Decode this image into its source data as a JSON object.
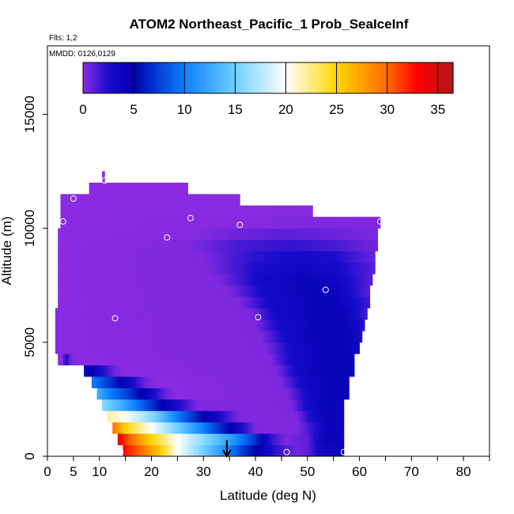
{
  "chart_data": {
    "type": "heatmap",
    "title": "ATOM2 Northeast_Pacific_1 Prob_SeaIceInf",
    "flights_label": "Flts: 1,2",
    "dates_label": "MMDD: 0126,0129",
    "xlabel": "Latitude (deg N)",
    "ylabel": "Altitude (m)",
    "xlim": [
      0,
      85
    ],
    "ylim": [
      0,
      18000
    ],
    "x_ticks": [
      0,
      5,
      10,
      20,
      30,
      40,
      50,
      60,
      70,
      80
    ],
    "x_tick_labels": [
      "0",
      "5",
      "10",
      "20",
      "30",
      "40",
      "50",
      "60",
      "70",
      "80"
    ],
    "y_ticks": [
      0,
      5000,
      10000,
      15000
    ],
    "y_tick_labels": [
      "0",
      "5000",
      "10000",
      "15000"
    ],
    "colorbar": {
      "min": 0,
      "max": 36.5,
      "ticks": [
        0,
        5,
        10,
        15,
        20,
        25,
        30,
        35
      ],
      "tick_labels": [
        "0",
        "5",
        "10",
        "15",
        "20",
        "25",
        "30",
        "35"
      ],
      "stops": [
        {
          "v": 0,
          "c": "#8a2be2"
        },
        {
          "v": 2.5,
          "c": "#1a0dcc"
        },
        {
          "v": 5,
          "c": "#0000b0"
        },
        {
          "v": 10,
          "c": "#0a80ff"
        },
        {
          "v": 15,
          "c": "#6fd0ff"
        },
        {
          "v": 20,
          "c": "#ffffff"
        },
        {
          "v": 25,
          "c": "#ffd700"
        },
        {
          "v": 30,
          "c": "#ff6a00"
        },
        {
          "v": 33,
          "c": "#ff0000"
        },
        {
          "v": 36.5,
          "c": "#b01818"
        }
      ]
    },
    "field_rows": [
      {
        "y0": 0,
        "y1": 500,
        "x0": 14.5,
        "x1": 57,
        "stops": [
          [
            14.5,
            33
          ],
          [
            18,
            30
          ],
          [
            22,
            25
          ],
          [
            25,
            20
          ],
          [
            30,
            15
          ],
          [
            35,
            10
          ],
          [
            40,
            5
          ],
          [
            44,
            2
          ],
          [
            48,
            0.5
          ],
          [
            50,
            1
          ],
          [
            53,
            3.5
          ],
          [
            57,
            4
          ]
        ]
      },
      {
        "y0": 500,
        "y1": 1000,
        "x0": 13.5,
        "x1": 57,
        "stops": [
          [
            13.5,
            34
          ],
          [
            16,
            30
          ],
          [
            20,
            25
          ],
          [
            25,
            20
          ],
          [
            30,
            16
          ],
          [
            35,
            12
          ],
          [
            40,
            7
          ],
          [
            43,
            2
          ],
          [
            46,
            0.3
          ],
          [
            50,
            1
          ],
          [
            53,
            4
          ],
          [
            57,
            4
          ]
        ]
      },
      {
        "y0": 1000,
        "y1": 1500,
        "x0": 12.5,
        "x1": 57,
        "stops": [
          [
            12.5,
            30
          ],
          [
            15,
            25
          ],
          [
            18,
            22
          ],
          [
            22,
            18
          ],
          [
            28,
            12
          ],
          [
            33,
            7
          ],
          [
            37,
            3
          ],
          [
            40,
            0.3
          ],
          [
            48,
            0.2
          ],
          [
            51,
            2
          ],
          [
            54,
            4
          ],
          [
            57,
            4
          ]
        ]
      },
      {
        "y0": 1500,
        "y1": 2000,
        "x0": 11.5,
        "x1": 57,
        "stops": [
          [
            11.5,
            22
          ],
          [
            15,
            20
          ],
          [
            20,
            16
          ],
          [
            25,
            10
          ],
          [
            30,
            5
          ],
          [
            34,
            2
          ],
          [
            37,
            0.2
          ],
          [
            48,
            0.3
          ],
          [
            51,
            3
          ],
          [
            54,
            4
          ],
          [
            57,
            4
          ]
        ]
      },
      {
        "y0": 2000,
        "y1": 2500,
        "x0": 10.5,
        "x1": 57,
        "stops": [
          [
            10.5,
            16
          ],
          [
            14,
            13
          ],
          [
            18,
            9
          ],
          [
            22,
            5
          ],
          [
            26,
            2
          ],
          [
            29,
            0.2
          ],
          [
            47,
            0.3
          ],
          [
            50,
            3
          ],
          [
            54,
            4
          ],
          [
            57,
            4
          ]
        ]
      },
      {
        "y0": 2500,
        "y1": 3000,
        "x0": 9.5,
        "x1": 58,
        "stops": [
          [
            9.5,
            13
          ],
          [
            12,
            10
          ],
          [
            16,
            7
          ],
          [
            20,
            3
          ],
          [
            23,
            0.5
          ],
          [
            25,
            0
          ],
          [
            46,
            0.3
          ],
          [
            50,
            3
          ],
          [
            54,
            4
          ],
          [
            58,
            4
          ]
        ]
      },
      {
        "y0": 3000,
        "y1": 3500,
        "x0": 8.5,
        "x1": 58,
        "stops": [
          [
            8.5,
            10
          ],
          [
            12,
            7
          ],
          [
            16,
            3
          ],
          [
            19,
            0.5
          ],
          [
            21,
            0
          ],
          [
            45,
            0.3
          ],
          [
            49,
            3
          ],
          [
            53,
            4
          ],
          [
            58,
            4
          ]
        ]
      },
      {
        "y0": 3500,
        "y1": 4000,
        "x0": 7,
        "x1": 59,
        "stops": [
          [
            7,
            6
          ],
          [
            10,
            3
          ],
          [
            13,
            0.5
          ],
          [
            15,
            0
          ],
          [
            44,
            0.3
          ],
          [
            48,
            3
          ],
          [
            52,
            4
          ],
          [
            59,
            4
          ]
        ]
      },
      {
        "y0": 4000,
        "y1": 4500,
        "x0": 2,
        "x1": 59,
        "stops": [
          [
            2,
            0
          ],
          [
            3,
            0
          ],
          [
            3.5,
            3
          ],
          [
            4.5,
            0.3
          ],
          [
            6,
            0
          ],
          [
            43,
            0.3
          ],
          [
            47,
            3
          ],
          [
            52,
            4
          ],
          [
            59,
            4
          ]
        ]
      },
      {
        "y0": 4500,
        "y1": 5000,
        "x0": 1.5,
        "x1": 60,
        "stops": [
          [
            1.5,
            0
          ],
          [
            42,
            0.3
          ],
          [
            47,
            3
          ],
          [
            52,
            4
          ],
          [
            58,
            4
          ],
          [
            60,
            3
          ]
        ]
      },
      {
        "y0": 5000,
        "y1": 5500,
        "x0": 1.5,
        "x1": 60.5,
        "stops": [
          [
            1.5,
            0
          ],
          [
            41,
            0.3
          ],
          [
            46,
            3
          ],
          [
            51,
            4
          ],
          [
            58,
            4
          ],
          [
            60.5,
            2.5
          ]
        ]
      },
      {
        "y0": 5500,
        "y1": 6000,
        "x0": 1.5,
        "x1": 61,
        "stops": [
          [
            1.5,
            0
          ],
          [
            40,
            0.3
          ],
          [
            45,
            3
          ],
          [
            51,
            4
          ],
          [
            58,
            4
          ],
          [
            61,
            2
          ]
        ]
      },
      {
        "y0": 6000,
        "y1": 6500,
        "x0": 1.5,
        "x1": 61.5,
        "stops": [
          [
            1.5,
            0
          ],
          [
            39,
            0.3
          ],
          [
            44,
            3
          ],
          [
            51,
            4
          ],
          [
            57,
            4
          ],
          [
            61.5,
            1.5
          ]
        ]
      },
      {
        "y0": 6500,
        "y1": 7000,
        "x0": 2,
        "x1": 62,
        "stops": [
          [
            2,
            0
          ],
          [
            37,
            0.3
          ],
          [
            43,
            3
          ],
          [
            51,
            4
          ],
          [
            56,
            4
          ],
          [
            62,
            1.5
          ]
        ]
      },
      {
        "y0": 7000,
        "y1": 7500,
        "x0": 2,
        "x1": 62,
        "stops": [
          [
            2,
            0
          ],
          [
            35,
            0.3
          ],
          [
            42,
            3
          ],
          [
            50,
            4
          ],
          [
            55,
            4
          ],
          [
            62,
            1
          ]
        ]
      },
      {
        "y0": 7500,
        "y1": 8000,
        "x0": 2,
        "x1": 62.5,
        "stops": [
          [
            2,
            0
          ],
          [
            33,
            0.3
          ],
          [
            41,
            3
          ],
          [
            50,
            4
          ],
          [
            55,
            3.5
          ],
          [
            62.5,
            1
          ]
        ]
      },
      {
        "y0": 8000,
        "y1": 8500,
        "x0": 2,
        "x1": 63,
        "stops": [
          [
            2,
            0
          ],
          [
            31,
            0.3
          ],
          [
            40,
            2.5
          ],
          [
            49,
            3.5
          ],
          [
            55,
            3
          ],
          [
            63,
            1
          ]
        ]
      },
      {
        "y0": 8500,
        "y1": 9000,
        "x0": 2,
        "x1": 63,
        "stops": [
          [
            2,
            0
          ],
          [
            30,
            0.3
          ],
          [
            39,
            2
          ],
          [
            48,
            3
          ],
          [
            55,
            2.5
          ],
          [
            63,
            0.7
          ]
        ]
      },
      {
        "y0": 9000,
        "y1": 9500,
        "x0": 2,
        "x1": 63.5,
        "stops": [
          [
            2,
            0
          ],
          [
            27,
            0.2
          ],
          [
            37,
            1.5
          ],
          [
            47,
            2
          ],
          [
            55,
            1.5
          ],
          [
            63.5,
            0.5
          ]
        ]
      },
      {
        "y0": 9500,
        "y1": 10000,
        "x0": 2,
        "x1": 63.5,
        "stops": [
          [
            2,
            0
          ],
          [
            28,
            0.1
          ],
          [
            38,
            0.7
          ],
          [
            46,
            1
          ],
          [
            55,
            0.7
          ],
          [
            63.5,
            0.3
          ]
        ]
      },
      {
        "y0": 10000,
        "y1": 10500,
        "x0": 2.5,
        "x1": 64,
        "stops": [
          [
            2.5,
            0
          ],
          [
            40,
            0.1
          ],
          [
            50,
            0.3
          ],
          [
            64,
            0.2
          ]
        ]
      },
      {
        "y0": 10500,
        "y1": 11000,
        "x0": 2.5,
        "x1": 51,
        "stops": [
          [
            2.5,
            0
          ],
          [
            51,
            0.05
          ]
        ]
      },
      {
        "y0": 11000,
        "y1": 11500,
        "x0": 2.5,
        "x1": 37,
        "stops": [
          [
            2.5,
            0
          ],
          [
            37,
            0
          ]
        ]
      },
      {
        "y0": 11500,
        "y1": 12000,
        "x0": 8,
        "x1": 27,
        "stops": [
          [
            8,
            0
          ],
          [
            27,
            0
          ]
        ]
      },
      {
        "y0": 12000,
        "y1": 12500,
        "x0": 10.5,
        "x1": 11,
        "stops": [
          [
            10.5,
            0
          ],
          [
            11,
            0
          ]
        ]
      }
    ],
    "points": [
      {
        "x": 0.8,
        "y": 4750
      },
      {
        "x": 3,
        "y": 10300
      },
      {
        "x": 5,
        "y": 11300
      },
      {
        "x": 11,
        "y": 12100
      },
      {
        "x": 13,
        "y": 6050
      },
      {
        "x": 14,
        "y": 180
      },
      {
        "x": 23,
        "y": 9600
      },
      {
        "x": 27.5,
        "y": 10450
      },
      {
        "x": 37,
        "y": 10150
      },
      {
        "x": 40.5,
        "y": 6100
      },
      {
        "x": 46,
        "y": 180
      },
      {
        "x": 53.5,
        "y": 7300
      },
      {
        "x": 57,
        "y": 180
      },
      {
        "x": 64,
        "y": 10300
      }
    ],
    "arrow": {
      "x": 34.5,
      "y_from": 700,
      "y_to": 0
    },
    "point_color": "#ffffff",
    "arrow_color": "#000000"
  }
}
